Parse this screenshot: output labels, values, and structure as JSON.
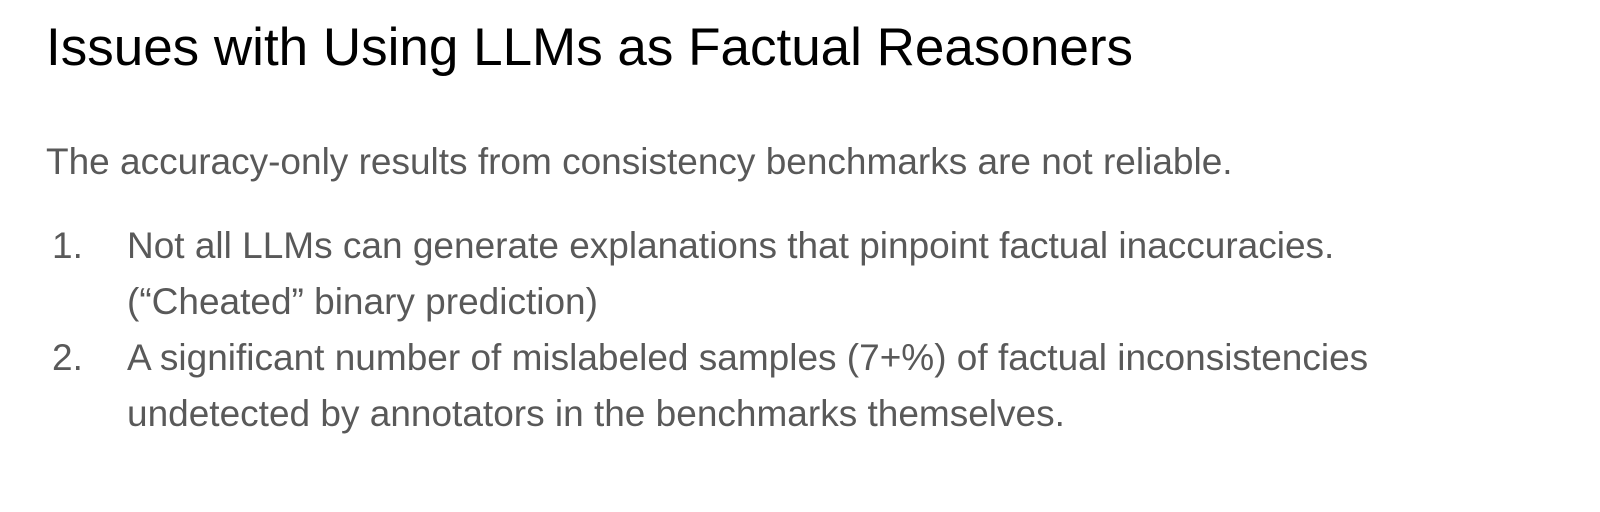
{
  "slide": {
    "title": "Issues with Using LLMs as Factual Reasoners",
    "intro": "The accuracy-only results from consistency benchmarks are not reliable.",
    "items": [
      {
        "number": "1.",
        "line1": "Not all LLMs can generate explanations that pinpoint factual inaccuracies.",
        "line2": "(“Cheated” binary prediction)"
      },
      {
        "number": "2.",
        "line1": "A significant number of mislabeled samples (7+%) of factual inconsistencies",
        "line2": "undetected by annotators in the benchmarks themselves."
      }
    ]
  },
  "colors": {
    "title": "#000000",
    "body_text": "#595959",
    "background": "#ffffff"
  }
}
